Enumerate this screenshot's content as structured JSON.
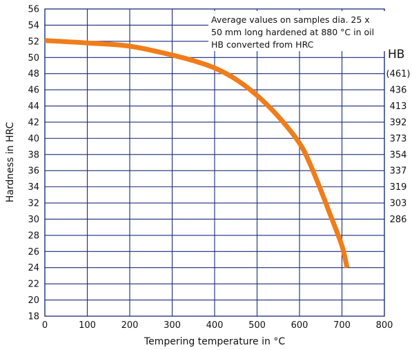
{
  "chart_data": {
    "type": "line",
    "xlabel": "Tempering temperature in °C",
    "ylabel": "Hardness in HRC",
    "xlim": [
      0,
      800
    ],
    "ylim": [
      18,
      56
    ],
    "x_ticks": [
      "0",
      "100",
      "200",
      "300",
      "400",
      "500",
      "600",
      "700",
      "800"
    ],
    "y_ticks": [
      "18",
      "20",
      "22",
      "24",
      "26",
      "28",
      "30",
      "32",
      "34",
      "36",
      "38",
      "40",
      "42",
      "44",
      "46",
      "48",
      "50",
      "52",
      "54",
      "56"
    ],
    "grid": true,
    "series": [
      {
        "color": "#f07d1a",
        "x": [
          0,
          100,
          200,
          300,
          350,
          400,
          450,
          500,
          550,
          600,
          625,
          650,
          675,
          700,
          712
        ],
        "y": [
          52.1,
          51.8,
          51.4,
          50.3,
          49.6,
          48.7,
          47.3,
          45.3,
          42.7,
          39.4,
          36.8,
          33.6,
          30.2,
          26.7,
          24.0
        ]
      }
    ],
    "annotation": {
      "lines": [
        "Average values on samples dia. 25 x",
        "50 mm long hardened at 880 °C in oil",
        "HB converted from HRC"
      ]
    },
    "secondary_axis": {
      "title": "HB",
      "labels": [
        {
          "hrc": 48,
          "text": "(461)"
        },
        {
          "hrc": 46,
          "text": "436"
        },
        {
          "hrc": 44,
          "text": "413"
        },
        {
          "hrc": 42,
          "text": "392"
        },
        {
          "hrc": 40,
          "text": "373"
        },
        {
          "hrc": 38,
          "text": "354"
        },
        {
          "hrc": 36,
          "text": "337"
        },
        {
          "hrc": 34,
          "text": "319"
        },
        {
          "hrc": 32,
          "text": "303"
        },
        {
          "hrc": 30,
          "text": "286"
        }
      ]
    }
  }
}
